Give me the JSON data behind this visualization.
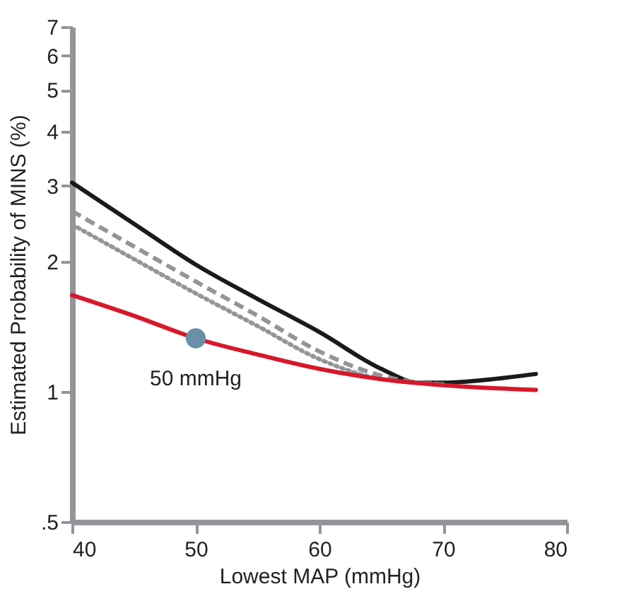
{
  "chart_data": {
    "type": "line",
    "xlabel": "Lowest MAP (mmHg)",
    "ylabel": "Estimated Probability of MINS (%)",
    "log": "y",
    "xlim": [
      40,
      80
    ],
    "xticks": [
      40,
      50,
      60,
      70,
      80
    ],
    "ylim": [
      0.5,
      7
    ],
    "yticks": [
      {
        "value": 0.5,
        "label": ".5"
      },
      1,
      2,
      3,
      4,
      5,
      6,
      7
    ],
    "grid": false,
    "marker": "none",
    "series": [
      {
        "color": "#1a1a1a",
        "line_style": "solid",
        "x": [
          40,
          45,
          50,
          55,
          60,
          65,
          68,
          70,
          74,
          77.5
        ],
        "values": [
          3.05,
          2.45,
          1.97,
          1.64,
          1.375,
          1.13,
          1.05,
          1.05,
          1.07,
          1.1
        ]
      },
      {
        "color": "#939598",
        "line_style": "dashed",
        "x": [
          40,
          45,
          50,
          55,
          60,
          65,
          68,
          70
        ],
        "values": [
          2.62,
          2.17,
          1.8,
          1.5,
          1.24,
          1.09,
          1.05,
          1.04
        ]
      },
      {
        "color": "#939598",
        "line_style": "dotted",
        "x": [
          40,
          45,
          50,
          55,
          60,
          65,
          68,
          70
        ],
        "values": [
          2.44,
          2.03,
          1.69,
          1.42,
          1.19,
          1.07,
          1.05,
          1.04
        ]
      },
      {
        "color": "#d7182a",
        "line_style": "solid",
        "x": [
          40,
          45,
          50,
          55,
          60,
          65,
          70,
          77.5
        ],
        "values": [
          1.675,
          1.5,
          1.33,
          1.22,
          1.13,
          1.07,
          1.036,
          1.01
        ]
      },
      {
        "type": "scatter",
        "marker": "circle",
        "color": "#6b8fa8",
        "x": [
          50
        ],
        "values": [
          1.33
        ]
      }
    ],
    "annotations": [
      {
        "text": "50 mmHg",
        "x": 50,
        "y": 1.33
      }
    ]
  }
}
